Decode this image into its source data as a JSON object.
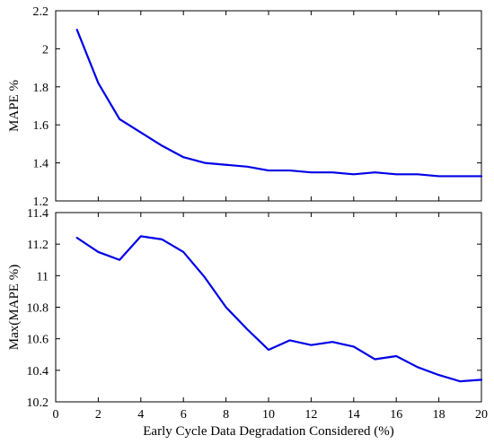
{
  "chart_data": [
    {
      "type": "line",
      "xlabel": "",
      "ylabel": "MAPE %",
      "xlim": [
        0,
        20
      ],
      "ylim": [
        1.2,
        2.2
      ],
      "xticks": [
        0,
        2,
        4,
        6,
        8,
        10,
        12,
        14,
        16,
        18,
        20
      ],
      "yticks": [
        1.2,
        1.4,
        1.6,
        1.8,
        2,
        2.2
      ],
      "ytick_labels": [
        "1.2",
        "1.4",
        "1.6",
        "1.8",
        "2",
        "2.2"
      ],
      "show_xtick_labels": false,
      "grid": false,
      "color": "#0000e6",
      "x": [
        1,
        2,
        3,
        4,
        5,
        6,
        7,
        8,
        9,
        10,
        11,
        12,
        13,
        14,
        15,
        16,
        17,
        18,
        19,
        20
      ],
      "values": [
        2.1,
        1.82,
        1.63,
        1.56,
        1.49,
        1.43,
        1.4,
        1.39,
        1.38,
        1.36,
        1.36,
        1.35,
        1.35,
        1.34,
        1.35,
        1.34,
        1.34,
        1.33,
        1.33,
        1.33
      ]
    },
    {
      "type": "line",
      "xlabel": "Early Cycle Data Degradation Considered (%)",
      "ylabel": "Max(MAPE %)",
      "xlim": [
        0,
        20
      ],
      "ylim": [
        10.2,
        11.4
      ],
      "xticks": [
        0,
        2,
        4,
        6,
        8,
        10,
        12,
        14,
        16,
        18,
        20
      ],
      "yticks": [
        10.2,
        10.4,
        10.6,
        10.8,
        11,
        11.2,
        11.4
      ],
      "ytick_labels": [
        "10.2",
        "10.4",
        "10.6",
        "10.8",
        "11",
        "11.2",
        "11.4"
      ],
      "show_xtick_labels": true,
      "grid": false,
      "color": "#0000e6",
      "x": [
        1,
        2,
        3,
        4,
        5,
        6,
        7,
        8,
        9,
        10,
        11,
        12,
        13,
        14,
        15,
        16,
        17,
        18,
        19,
        20
      ],
      "values": [
        11.24,
        11.15,
        11.1,
        11.25,
        11.23,
        11.15,
        10.99,
        10.8,
        10.66,
        10.53,
        10.59,
        10.56,
        10.58,
        10.55,
        10.47,
        10.49,
        10.42,
        10.37,
        10.33,
        10.34
      ]
    }
  ]
}
